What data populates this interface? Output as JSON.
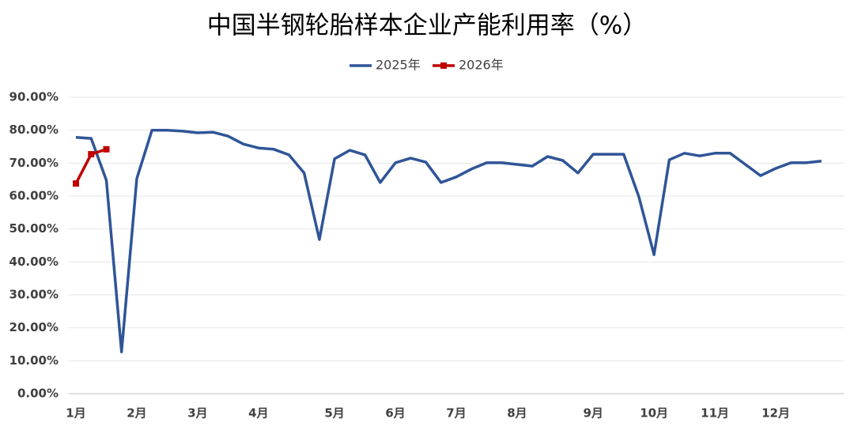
{
  "chart_data": {
    "type": "line",
    "title": "中国半钢轮胎样本企业产能利用率（%）",
    "categories": [
      "1月",
      null,
      null,
      null,
      "2月",
      null,
      null,
      null,
      "3月",
      null,
      null,
      null,
      "4月",
      null,
      null,
      null,
      null,
      "5月",
      null,
      null,
      null,
      "6月",
      null,
      null,
      null,
      "7月",
      null,
      null,
      null,
      "8月",
      null,
      null,
      null,
      null,
      "9月",
      null,
      null,
      null,
      "10月",
      null,
      null,
      null,
      "11月",
      null,
      null,
      null,
      "12月",
      null,
      null,
      null,
      null
    ],
    "series": [
      {
        "name": "2025年",
        "color": "#2f5597",
        "marker": false,
        "values": [
          77.8,
          77.5,
          64.8,
          12.7,
          65.3,
          80,
          80,
          79.7,
          79.2,
          79.4,
          78.2,
          75.8,
          74.6,
          74.2,
          72.5,
          67,
          46.8,
          71.3,
          73.9,
          72.5,
          64.1,
          70.1,
          71.5,
          70.3,
          64.1,
          65.8,
          68.2,
          70.1,
          70.1,
          69.6,
          69.1,
          72,
          70.8,
          67,
          72.7,
          72.7,
          72.7,
          59.8,
          42.2,
          71,
          73,
          72.2,
          73,
          73,
          69.6,
          66.2,
          68.4,
          70.1,
          70.1,
          70.6,
          null
        ]
      },
      {
        "name": "2026年",
        "color": "#c00000",
        "marker": true,
        "values": [
          63.8,
          72.7,
          74.2,
          null,
          null,
          null,
          null,
          null,
          null,
          null,
          null,
          null,
          null,
          null,
          null,
          null,
          null,
          null,
          null,
          null,
          null,
          null,
          null,
          null,
          null,
          null,
          null,
          null,
          null,
          null,
          null,
          null,
          null,
          null,
          null,
          null,
          null,
          null,
          null,
          null,
          null,
          null,
          null,
          null,
          null,
          null,
          null,
          null,
          null,
          null,
          null
        ]
      }
    ],
    "ylim": [
      0,
      90
    ],
    "yticks": [
      {
        "value": 0,
        "label": "0.00%"
      },
      {
        "value": 10,
        "label": "10.00%"
      },
      {
        "value": 20,
        "label": "20.00%"
      },
      {
        "value": 30,
        "label": "30.00%"
      },
      {
        "value": 40,
        "label": "40.00%"
      },
      {
        "value": 50,
        "label": "50.00%"
      },
      {
        "value": 60,
        "label": "60.00%"
      },
      {
        "value": 70,
        "label": "70.00%"
      },
      {
        "value": 80,
        "label": "80.00%"
      },
      {
        "value": 90,
        "label": "90.00%"
      }
    ],
    "grid": true,
    "legend": "top"
  }
}
